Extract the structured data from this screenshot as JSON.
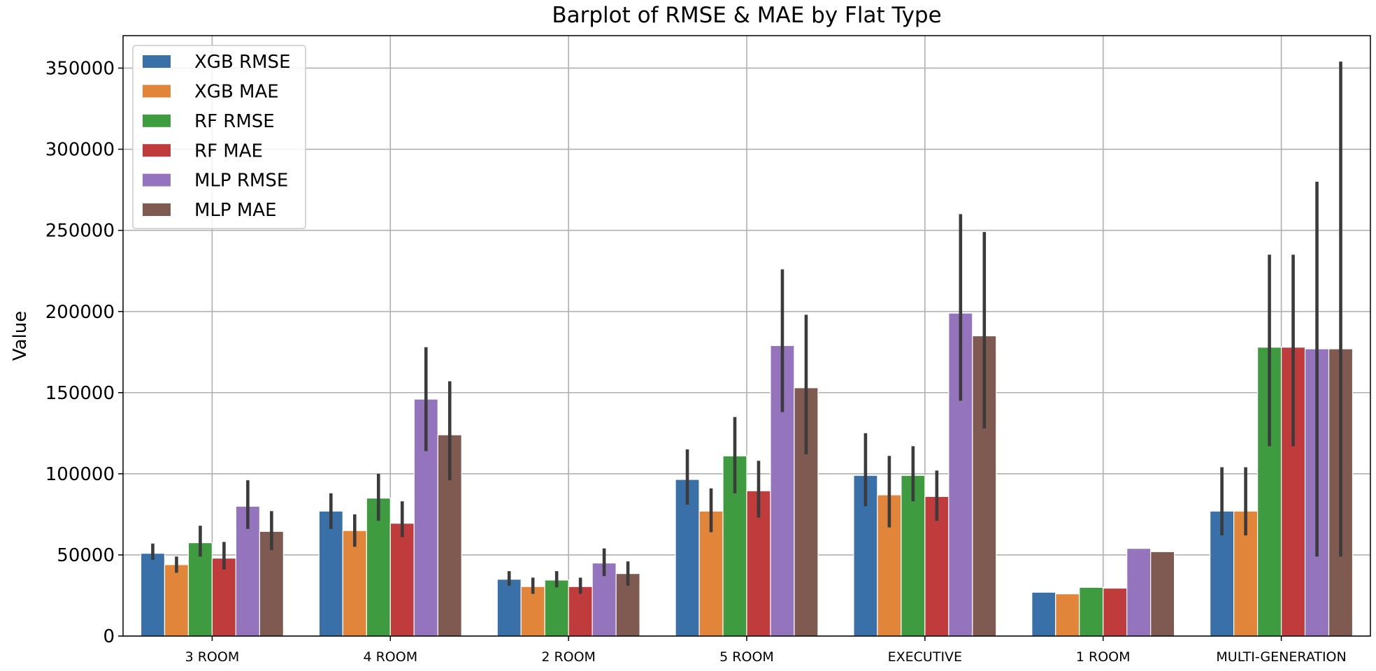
{
  "chart_data": {
    "type": "bar",
    "title": "Barplot of RMSE & MAE by Flat Type",
    "xlabel": "",
    "ylabel": "Value",
    "ylim": [
      0,
      370000
    ],
    "yticks": [
      0,
      50000,
      100000,
      150000,
      200000,
      250000,
      300000,
      350000
    ],
    "grid": true,
    "legend_position": "top-left",
    "categories": [
      "3 ROOM",
      "4 ROOM",
      "2 ROOM",
      "5 ROOM",
      "EXECUTIVE",
      "1 ROOM",
      "MULTI-GENERATION"
    ],
    "series": [
      {
        "name": "XGB RMSE",
        "color": "#3a70a8",
        "values": [
          51000,
          77000,
          35000,
          96500,
          99000,
          27000,
          77000
        ],
        "err_low": [
          47000,
          66000,
          31000,
          81000,
          80000,
          null,
          62000
        ],
        "err_high": [
          57000,
          88000,
          40000,
          115000,
          125000,
          null,
          104000
        ]
      },
      {
        "name": "XGB MAE",
        "color": "#e0853a",
        "values": [
          44000,
          65000,
          30500,
          77000,
          87000,
          26000,
          77000
        ],
        "err_low": [
          39000,
          55000,
          26000,
          64000,
          67000,
          null,
          62000
        ],
        "err_high": [
          49000,
          75000,
          36000,
          91000,
          111000,
          null,
          104000
        ]
      },
      {
        "name": "RF RMSE",
        "color": "#3f9b3f",
        "values": [
          57500,
          85000,
          34500,
          111000,
          99000,
          30000,
          178000
        ],
        "err_low": [
          49000,
          71000,
          30000,
          88000,
          83000,
          null,
          117000
        ],
        "err_high": [
          68000,
          100000,
          40000,
          135000,
          117000,
          null,
          235000
        ]
      },
      {
        "name": "RF MAE",
        "color": "#c03b3b",
        "values": [
          48000,
          69500,
          30500,
          89500,
          86000,
          29500,
          178000
        ],
        "err_low": [
          41000,
          61000,
          26000,
          73000,
          71000,
          null,
          117000
        ],
        "err_high": [
          58000,
          83000,
          36000,
          108000,
          102000,
          null,
          235000
        ]
      },
      {
        "name": "MLP RMSE",
        "color": "#9374bd",
        "values": [
          80000,
          146000,
          45000,
          179000,
          199000,
          54000,
          177000
        ],
        "err_low": [
          66000,
          114000,
          37000,
          138000,
          145000,
          null,
          49000
        ],
        "err_high": [
          96000,
          178000,
          54000,
          226000,
          260000,
          null,
          280000
        ]
      },
      {
        "name": "MLP MAE",
        "color": "#7e5a50",
        "values": [
          64500,
          124000,
          38500,
          153000,
          185000,
          52000,
          177000
        ],
        "err_low": [
          53000,
          96000,
          31000,
          112000,
          128000,
          null,
          49000
        ],
        "err_high": [
          77000,
          157000,
          46000,
          198000,
          249000,
          null,
          354000
        ]
      }
    ]
  }
}
